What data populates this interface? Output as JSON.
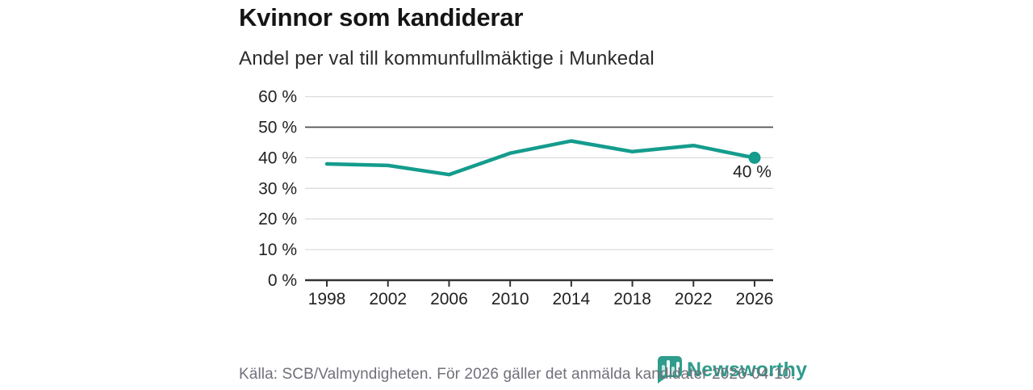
{
  "header": {
    "title": "Kvinnor som kandiderar",
    "subtitle": "Andel per val till kommunfullmäktige i Munkedal"
  },
  "chart_data": {
    "type": "line",
    "title": "Kvinnor som kandiderar",
    "subtitle": "Andel per val till kommunfullmäktige i Munkedal",
    "x": [
      1998,
      2002,
      2006,
      2010,
      2014,
      2018,
      2022,
      2026
    ],
    "values": [
      38,
      37.5,
      34.5,
      41.5,
      45.5,
      42,
      44,
      40
    ],
    "unit": "%",
    "ylim": [
      0,
      60
    ],
    "ytick_step": 10,
    "ytick_labels": [
      "0 %",
      "10 %",
      "20 %",
      "30 %",
      "40 %",
      "50 %",
      "60 %"
    ],
    "xtick_labels": [
      "1998",
      "2002",
      "2006",
      "2010",
      "2014",
      "2018",
      "2022",
      "2026"
    ],
    "reference_line_value": 50,
    "end_point_label": "40 %",
    "grid": true,
    "legend_position": "none",
    "colors": {
      "line": "#149c8d",
      "gridline": "#dcdcdc",
      "reference_line": "#4f4f4f",
      "axis_line": "#333333",
      "tick_text": "#222222"
    }
  },
  "footer": {
    "source": "Källa: SCB/Valmyndigheten. För 2026 gäller det anmälda kandidater 2026-04-10."
  },
  "branding": {
    "logo_text": "Newsworthy",
    "logo_color": "#2f9c8c",
    "logo_icon": "bar-chart-speech-bubble-icon"
  }
}
